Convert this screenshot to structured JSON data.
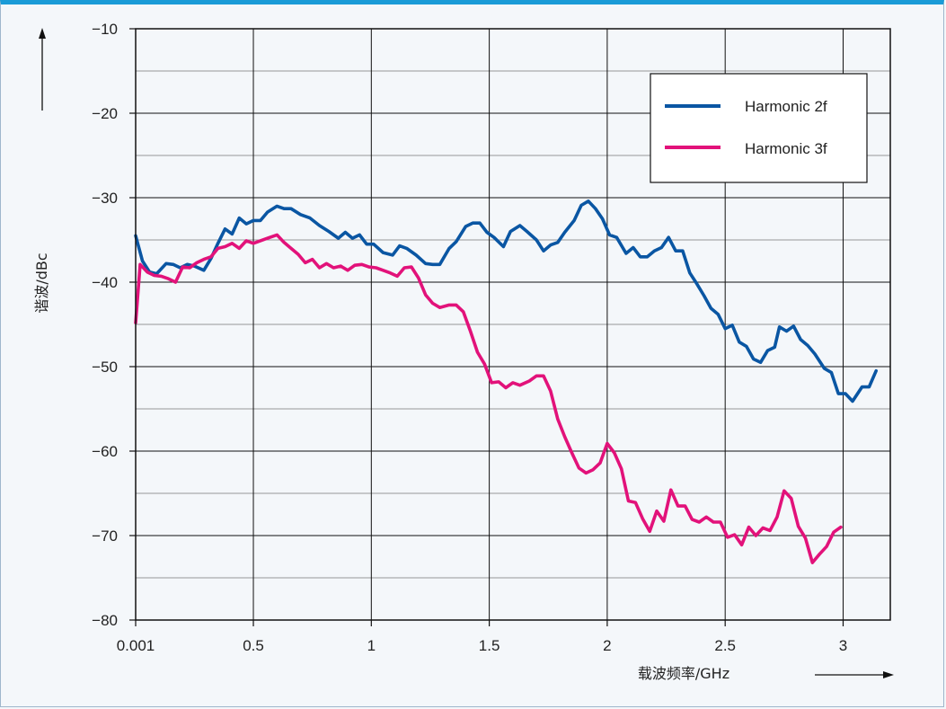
{
  "chart_data": {
    "type": "line",
    "xlabel": "载波频率/GHz",
    "ylabel": "谐波/dBc",
    "xlim": [
      0.001,
      3.2
    ],
    "ylim": [
      -80,
      -10
    ],
    "x_ticks": [
      {
        "value": 0.001,
        "label": "0.001"
      },
      {
        "value": 0.5,
        "label": "0.5"
      },
      {
        "value": 1,
        "label": "1"
      },
      {
        "value": 1.5,
        "label": "1.5"
      },
      {
        "value": 2,
        "label": "2"
      },
      {
        "value": 2.5,
        "label": "2.5"
      },
      {
        "value": 3,
        "label": "3"
      }
    ],
    "y_ticks": [
      {
        "value": -10,
        "label": "−10"
      },
      {
        "value": -20,
        "label": "−20"
      },
      {
        "value": -30,
        "label": "−30"
      },
      {
        "value": -40,
        "label": "−40"
      },
      {
        "value": -50,
        "label": "−50"
      },
      {
        "value": -60,
        "label": "−60"
      },
      {
        "value": -70,
        "label": "−70"
      },
      {
        "value": -80,
        "label": "−80"
      }
    ],
    "minor_y_gridlines": true,
    "grid": true,
    "legend_position": "top-right",
    "series": [
      {
        "name": "Harmonic 2f",
        "color": "#0a56a3",
        "points": [
          [
            0.001,
            -34.5
          ],
          [
            0.03,
            -37.5
          ],
          [
            0.06,
            -38.8
          ],
          [
            0.09,
            -39
          ],
          [
            0.13,
            -37.8
          ],
          [
            0.16,
            -37.9
          ],
          [
            0.19,
            -38.3
          ],
          [
            0.22,
            -37.9
          ],
          [
            0.25,
            -38.1
          ],
          [
            0.29,
            -38.6
          ],
          [
            0.32,
            -37.2
          ],
          [
            0.35,
            -35.4
          ],
          [
            0.38,
            -33.7
          ],
          [
            0.41,
            -34.3
          ],
          [
            0.44,
            -32.4
          ],
          [
            0.47,
            -33.1
          ],
          [
            0.5,
            -32.7
          ],
          [
            0.53,
            -32.7
          ],
          [
            0.56,
            -31.7
          ],
          [
            0.6,
            -31
          ],
          [
            0.63,
            -31.3
          ],
          [
            0.66,
            -31.3
          ],
          [
            0.7,
            -32
          ],
          [
            0.74,
            -32.4
          ],
          [
            0.78,
            -33.3
          ],
          [
            0.82,
            -34
          ],
          [
            0.86,
            -34.8
          ],
          [
            0.89,
            -34.1
          ],
          [
            0.92,
            -34.8
          ],
          [
            0.95,
            -34.4
          ],
          [
            0.98,
            -35.5
          ],
          [
            1.01,
            -35.5
          ],
          [
            1.05,
            -36.5
          ],
          [
            1.09,
            -36.8
          ],
          [
            1.12,
            -35.7
          ],
          [
            1.15,
            -36
          ],
          [
            1.19,
            -36.8
          ],
          [
            1.23,
            -37.8
          ],
          [
            1.26,
            -37.9
          ],
          [
            1.29,
            -37.9
          ],
          [
            1.33,
            -36
          ],
          [
            1.36,
            -35.2
          ],
          [
            1.4,
            -33.4
          ],
          [
            1.43,
            -33
          ],
          [
            1.46,
            -33
          ],
          [
            1.49,
            -34.1
          ],
          [
            1.52,
            -34.7
          ],
          [
            1.56,
            -35.8
          ],
          [
            1.59,
            -34
          ],
          [
            1.63,
            -33.3
          ],
          [
            1.66,
            -34
          ],
          [
            1.7,
            -35
          ],
          [
            1.73,
            -36.3
          ],
          [
            1.76,
            -35.6
          ],
          [
            1.79,
            -35.3
          ],
          [
            1.82,
            -34.1
          ],
          [
            1.86,
            -32.7
          ],
          [
            1.89,
            -30.9
          ],
          [
            1.92,
            -30.4
          ],
          [
            1.95,
            -31.3
          ],
          [
            1.98,
            -32.5
          ],
          [
            2.01,
            -34.4
          ],
          [
            2.04,
            -34.7
          ],
          [
            2.08,
            -36.6
          ],
          [
            2.11,
            -35.9
          ],
          [
            2.14,
            -37
          ],
          [
            2.17,
            -37
          ],
          [
            2.2,
            -36.3
          ],
          [
            2.23,
            -35.9
          ],
          [
            2.26,
            -34.7
          ],
          [
            2.29,
            -36.3
          ],
          [
            2.32,
            -36.3
          ],
          [
            2.35,
            -38.9
          ],
          [
            2.38,
            -40.2
          ],
          [
            2.41,
            -41.6
          ],
          [
            2.44,
            -43.1
          ],
          [
            2.47,
            -43.8
          ],
          [
            2.5,
            -45.5
          ],
          [
            2.53,
            -45.1
          ],
          [
            2.56,
            -47.1
          ],
          [
            2.59,
            -47.6
          ],
          [
            2.62,
            -49.1
          ],
          [
            2.65,
            -49.5
          ],
          [
            2.68,
            -48.1
          ],
          [
            2.71,
            -47.7
          ],
          [
            2.73,
            -45.3
          ],
          [
            2.76,
            -45.8
          ],
          [
            2.79,
            -45.2
          ],
          [
            2.82,
            -46.8
          ],
          [
            2.85,
            -47.5
          ],
          [
            2.88,
            -48.5
          ],
          [
            2.92,
            -50.2
          ],
          [
            2.95,
            -50.7
          ],
          [
            2.98,
            -53.2
          ],
          [
            3.01,
            -53.2
          ],
          [
            3.04,
            -54.1
          ],
          [
            3.08,
            -52.4
          ],
          [
            3.11,
            -52.4
          ],
          [
            3.14,
            -50.5
          ]
        ]
      },
      {
        "name": "Harmonic 3f",
        "color": "#e2127a",
        "points": [
          [
            0.001,
            -44.8
          ],
          [
            0.02,
            -37.9
          ],
          [
            0.05,
            -38.8
          ],
          [
            0.08,
            -39.2
          ],
          [
            0.11,
            -39.3
          ],
          [
            0.14,
            -39.6
          ],
          [
            0.17,
            -40
          ],
          [
            0.2,
            -38.2
          ],
          [
            0.23,
            -38.3
          ],
          [
            0.26,
            -37.7
          ],
          [
            0.29,
            -37.3
          ],
          [
            0.32,
            -37
          ],
          [
            0.35,
            -36
          ],
          [
            0.38,
            -35.8
          ],
          [
            0.41,
            -35.4
          ],
          [
            0.44,
            -36
          ],
          [
            0.47,
            -35.1
          ],
          [
            0.5,
            -35.4
          ],
          [
            0.53,
            -35.1
          ],
          [
            0.56,
            -34.8
          ],
          [
            0.6,
            -34.4
          ],
          [
            0.63,
            -35.3
          ],
          [
            0.66,
            -36
          ],
          [
            0.69,
            -36.7
          ],
          [
            0.72,
            -37.7
          ],
          [
            0.75,
            -37.3
          ],
          [
            0.78,
            -38.3
          ],
          [
            0.81,
            -37.8
          ],
          [
            0.84,
            -38.3
          ],
          [
            0.87,
            -38.1
          ],
          [
            0.9,
            -38.6
          ],
          [
            0.93,
            -38
          ],
          [
            0.96,
            -37.9
          ],
          [
            0.99,
            -38.2
          ],
          [
            1.02,
            -38.3
          ],
          [
            1.05,
            -38.6
          ],
          [
            1.08,
            -38.9
          ],
          [
            1.11,
            -39.3
          ],
          [
            1.14,
            -38.3
          ],
          [
            1.17,
            -38.2
          ],
          [
            1.2,
            -39.5
          ],
          [
            1.23,
            -41.5
          ],
          [
            1.26,
            -42.5
          ],
          [
            1.29,
            -43
          ],
          [
            1.33,
            -42.7
          ],
          [
            1.36,
            -42.7
          ],
          [
            1.39,
            -43.5
          ],
          [
            1.42,
            -45.8
          ],
          [
            1.45,
            -48.3
          ],
          [
            1.48,
            -49.7
          ],
          [
            1.51,
            -51.9
          ],
          [
            1.54,
            -51.8
          ],
          [
            1.57,
            -52.5
          ],
          [
            1.6,
            -51.9
          ],
          [
            1.63,
            -52.2
          ],
          [
            1.67,
            -51.7
          ],
          [
            1.7,
            -51.1
          ],
          [
            1.73,
            -51.1
          ],
          [
            1.76,
            -52.9
          ],
          [
            1.79,
            -56.2
          ],
          [
            1.82,
            -58.3
          ],
          [
            1.85,
            -60.2
          ],
          [
            1.88,
            -62
          ],
          [
            1.91,
            -62.6
          ],
          [
            1.94,
            -62.2
          ],
          [
            1.97,
            -61.4
          ],
          [
            2,
            -59.1
          ],
          [
            2.03,
            -60.2
          ],
          [
            2.06,
            -62.1
          ],
          [
            2.09,
            -65.9
          ],
          [
            2.12,
            -66.1
          ],
          [
            2.15,
            -68
          ],
          [
            2.18,
            -69.5
          ],
          [
            2.21,
            -67.1
          ],
          [
            2.24,
            -68.3
          ],
          [
            2.27,
            -64.6
          ],
          [
            2.3,
            -66.5
          ],
          [
            2.33,
            -66.5
          ],
          [
            2.36,
            -68.1
          ],
          [
            2.39,
            -68.4
          ],
          [
            2.42,
            -67.8
          ],
          [
            2.45,
            -68.4
          ],
          [
            2.48,
            -68.4
          ],
          [
            2.51,
            -70.2
          ],
          [
            2.54,
            -69.9
          ],
          [
            2.57,
            -71.1
          ],
          [
            2.6,
            -69
          ],
          [
            2.63,
            -70
          ],
          [
            2.66,
            -69.1
          ],
          [
            2.69,
            -69.4
          ],
          [
            2.72,
            -67.8
          ],
          [
            2.75,
            -64.7
          ],
          [
            2.78,
            -65.6
          ],
          [
            2.81,
            -68.9
          ],
          [
            2.84,
            -70.3
          ],
          [
            2.87,
            -73.2
          ],
          [
            2.9,
            -72.2
          ],
          [
            2.93,
            -71.3
          ],
          [
            2.96,
            -69.6
          ],
          [
            2.99,
            -69
          ]
        ]
      }
    ]
  }
}
